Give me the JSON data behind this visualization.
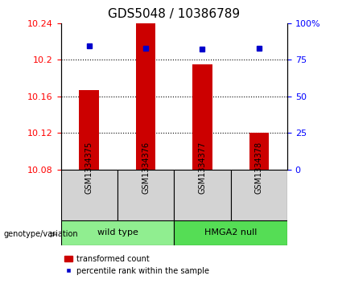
{
  "title": "GDS5048 / 10386789",
  "samples": [
    "GSM1334375",
    "GSM1334376",
    "GSM1334377",
    "GSM1334378"
  ],
  "bar_values": [
    10.167,
    10.24,
    10.195,
    10.12
  ],
  "percentile_values": [
    10.215,
    10.213,
    10.212,
    10.213
  ],
  "y_min": 10.08,
  "y_max": 10.24,
  "y_ticks_left": [
    10.08,
    10.12,
    10.16,
    10.2,
    10.24
  ],
  "y_ticks_right": [
    0,
    25,
    50,
    75,
    100
  ],
  "bar_color": "#cc0000",
  "point_color": "#0000cc",
  "bar_bottom": 10.08,
  "groups": [
    {
      "label": "wild type",
      "samples": [
        0,
        1
      ],
      "color": "#90ee90"
    },
    {
      "label": "HMGA2 null",
      "samples": [
        2,
        3
      ],
      "color": "#55dd55"
    }
  ],
  "group_label": "genotype/variation",
  "legend_bar_label": "transformed count",
  "legend_point_label": "percentile rank within the sample",
  "title_fontsize": 11,
  "tick_fontsize": 8,
  "sample_fontsize": 7,
  "group_fontsize": 8
}
